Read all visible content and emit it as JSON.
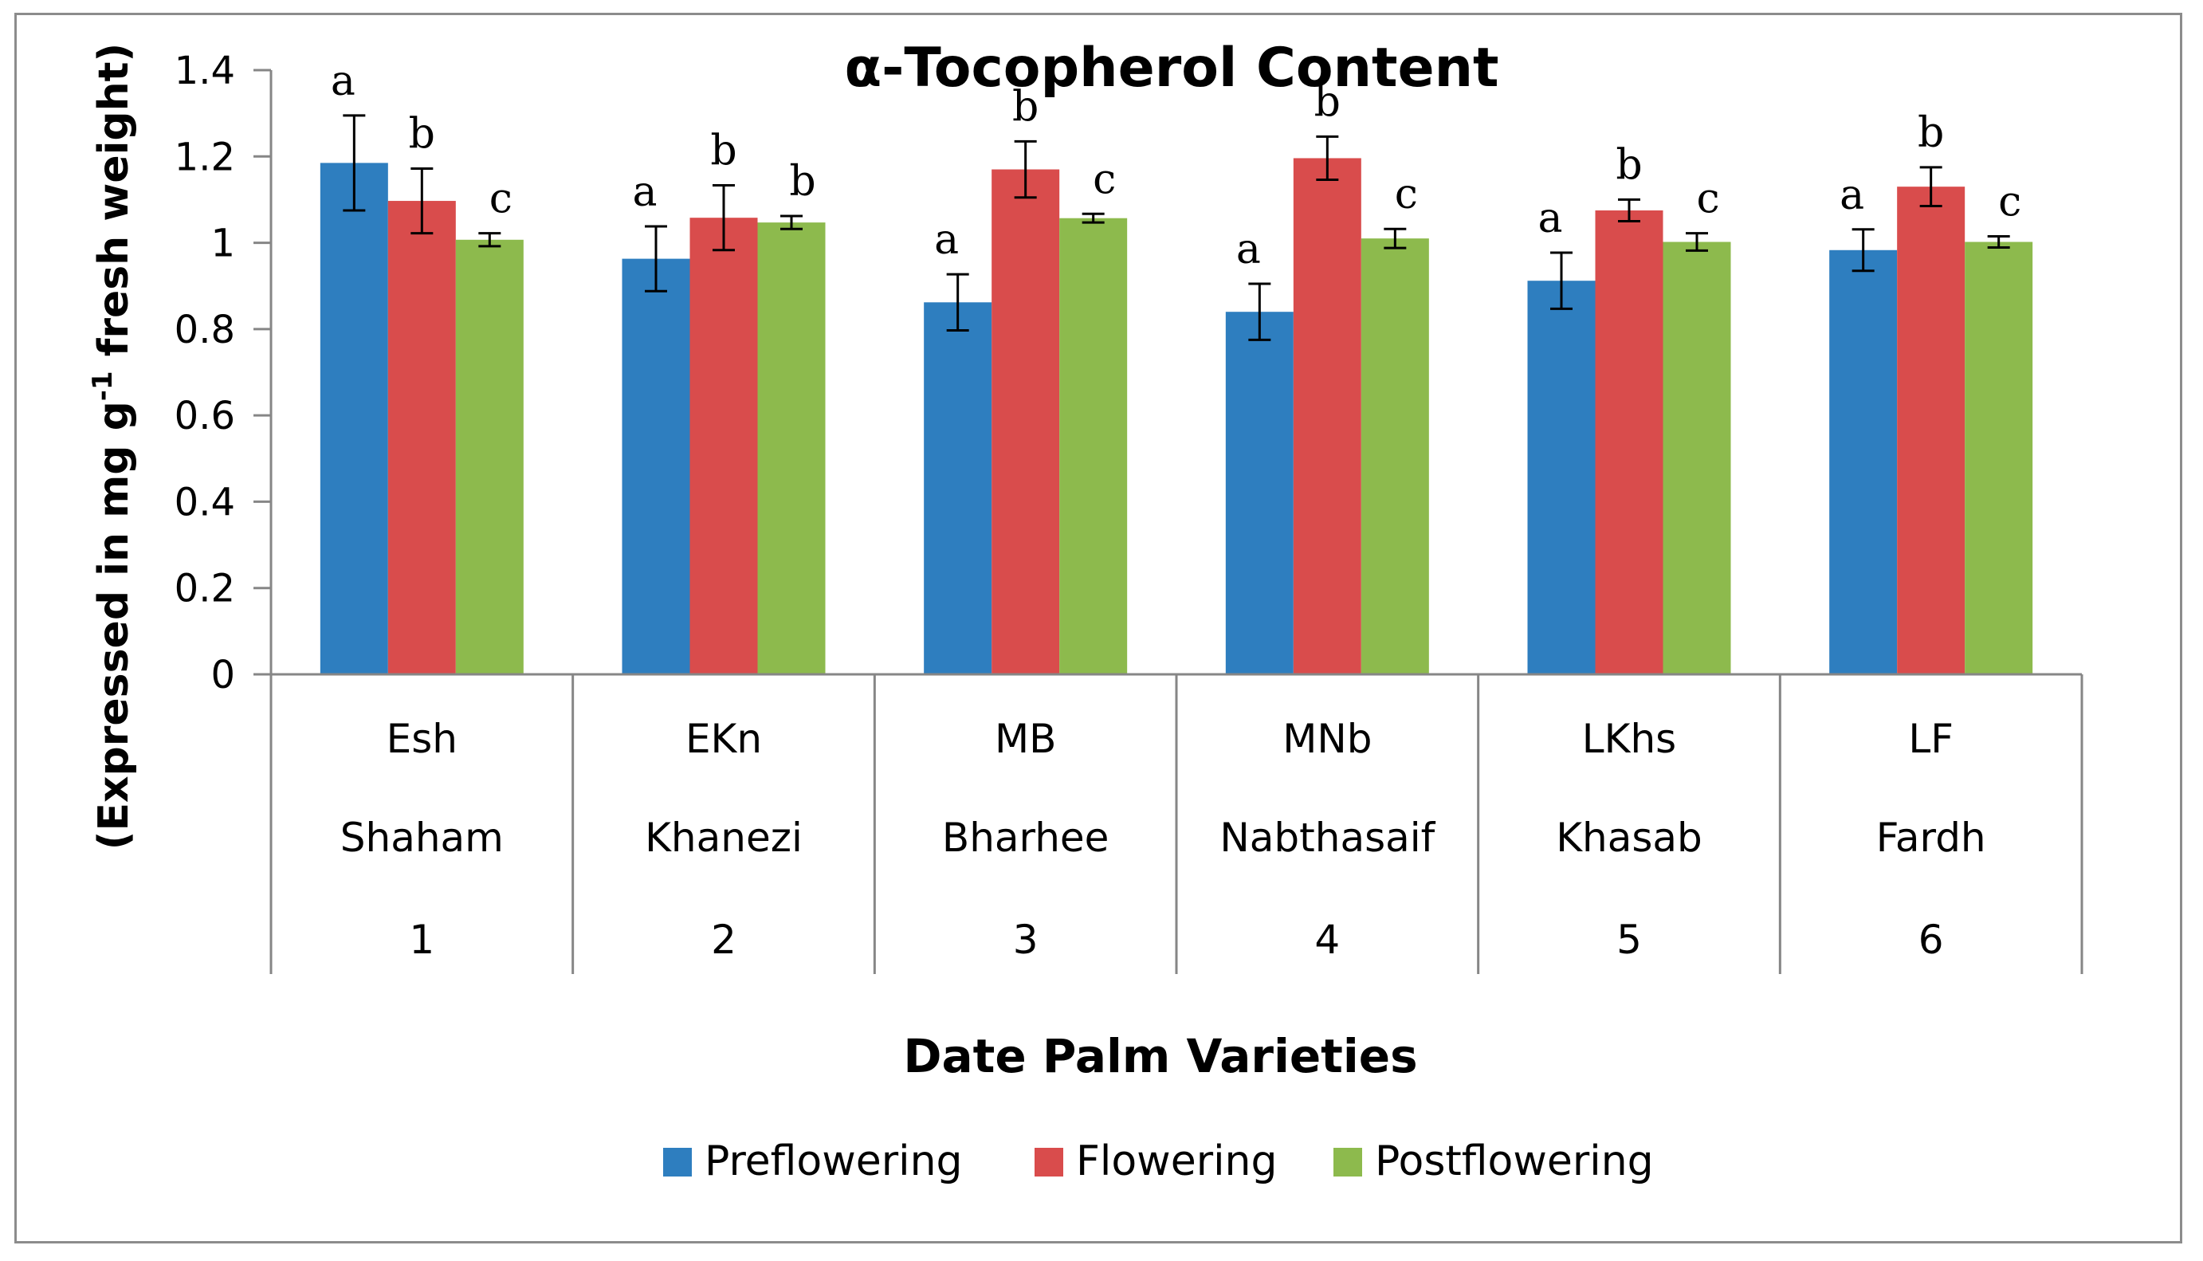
{
  "chart_data": {
    "type": "bar",
    "title": "α-Tocopherol Content",
    "xlabel": "Date Palm Varieties",
    "ylabel": "(Expressed in mg g",
    "ylabel_sup": "-1",
    "ylabel_tail": " fresh weight)",
    "ylim": [
      0,
      1.4
    ],
    "yticks": [
      "0",
      "0.2",
      "0.4",
      "0.6",
      "0.8",
      "1",
      "1.2",
      "1.4"
    ],
    "categories": [
      {
        "code": "Esh",
        "name": "Shaham",
        "num": "1"
      },
      {
        "code": "EKn",
        "name": "Khanezi",
        "num": "2"
      },
      {
        "code": "MB",
        "name": "Bharhee",
        "num": "3"
      },
      {
        "code": "MNb",
        "name": "Nabthasaif",
        "num": "4"
      },
      {
        "code": "LKhs",
        "name": "Khasab",
        "num": "5"
      },
      {
        "code": "LF",
        "name": "Fardh",
        "num": "6"
      }
    ],
    "series": [
      {
        "name": "Preflowering",
        "color": "#2e7ebf",
        "values": [
          1.185,
          0.963,
          0.862,
          0.84,
          0.912,
          0.983
        ],
        "errors": [
          0.11,
          0.075,
          0.065,
          0.065,
          0.065,
          0.048
        ],
        "letters": [
          "a",
          "a",
          "a",
          "a",
          "a",
          "a"
        ]
      },
      {
        "name": "Flowering",
        "color": "#d94c4c",
        "values": [
          1.097,
          1.058,
          1.17,
          1.196,
          1.075,
          1.13
        ],
        "errors": [
          0.075,
          0.075,
          0.065,
          0.05,
          0.025,
          0.045
        ],
        "letters": [
          "b",
          "b",
          "b",
          "b",
          "b",
          "b"
        ]
      },
      {
        "name": "Postflowering",
        "color": "#8dba4d",
        "values": [
          1.007,
          1.047,
          1.057,
          1.01,
          1.002,
          1.002
        ],
        "errors": [
          0.015,
          0.015,
          0.01,
          0.022,
          0.02,
          0.013
        ],
        "letters": [
          "c",
          "b",
          "c",
          "c",
          "c",
          "c"
        ]
      }
    ],
    "legend_position": "bottom"
  }
}
